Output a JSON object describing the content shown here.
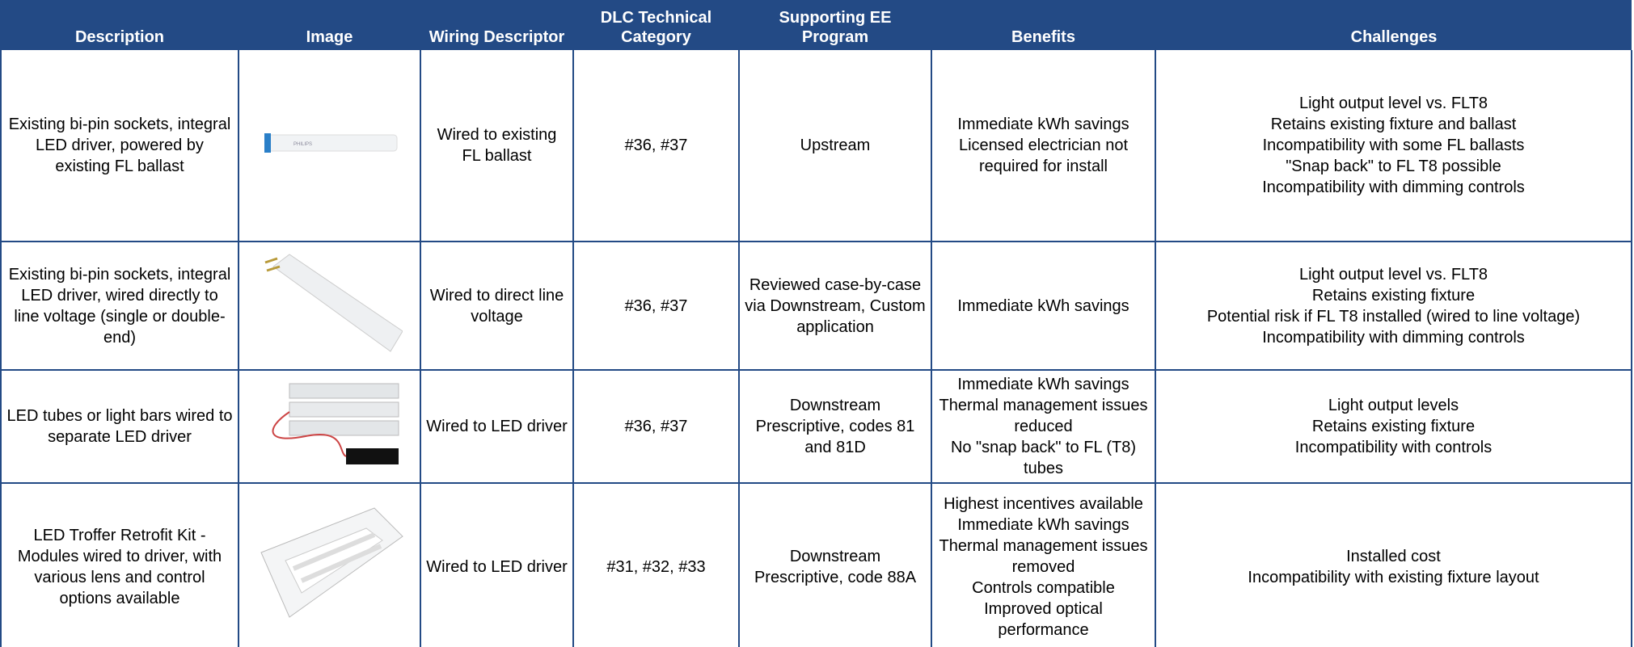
{
  "table": {
    "headers": [
      "Description",
      "Image",
      "Wiring Descriptor",
      "DLC Technical Category",
      "Supporting EE Program",
      "Benefits",
      "Challenges"
    ],
    "rows": [
      {
        "description": "Existing bi-pin sockets, integral LED driver, powered by existing FL ballast",
        "wiring": "Wired to existing FL ballast",
        "dlc": "#36, #37",
        "program": "Upstream",
        "benefits": [
          "Immediate kWh savings",
          "Licensed electrician not required for install"
        ],
        "challenges": [
          "Light output level vs. FLT8",
          "Retains existing fixture and ballast",
          "Incompatibility with some FL ballasts",
          "\"Snap back\" to FL T8 possible",
          "Incompatibility with dimming controls"
        ]
      },
      {
        "description": "Existing bi-pin sockets, integral LED driver, wired directly to line voltage (single or double-end)",
        "wiring": "Wired to direct line voltage",
        "dlc": "#36, #37",
        "program": "Reviewed case-by-case via Downstream, Custom application",
        "benefits": [
          "Immediate kWh savings"
        ],
        "challenges": [
          "Light output level vs. FLT8",
          "Retains existing fixture",
          "Potential risk if FL T8 installed (wired to line voltage)",
          "Incompatibility with dimming controls"
        ]
      },
      {
        "description": "LED tubes or light bars wired to separate LED driver",
        "wiring": "Wired to LED driver",
        "dlc": "#36, #37",
        "program": "Downstream Prescriptive, codes 81 and 81D",
        "benefits": [
          "Immediate kWh savings",
          "Thermal management issues reduced",
          "No \"snap back\" to FL (T8) tubes"
        ],
        "challenges": [
          "Light output levels",
          "Retains existing fixture",
          "Incompatibility with  controls"
        ]
      },
      {
        "description": "LED Troffer Retrofit Kit - Modules wired to driver, with various lens and control options available",
        "wiring": "Wired to LED driver",
        "dlc": "#31, #32, #33",
        "program": "Downstream Prescriptive, code 88A",
        "benefits": [
          "Highest incentives available",
          "Immediate kWh savings",
          "Thermal management issues removed",
          "Controls compatible",
          "Improved optical performance"
        ],
        "challenges": [
          "Installed cost",
          "Incompatibility with existing fixture layout"
        ]
      }
    ]
  }
}
